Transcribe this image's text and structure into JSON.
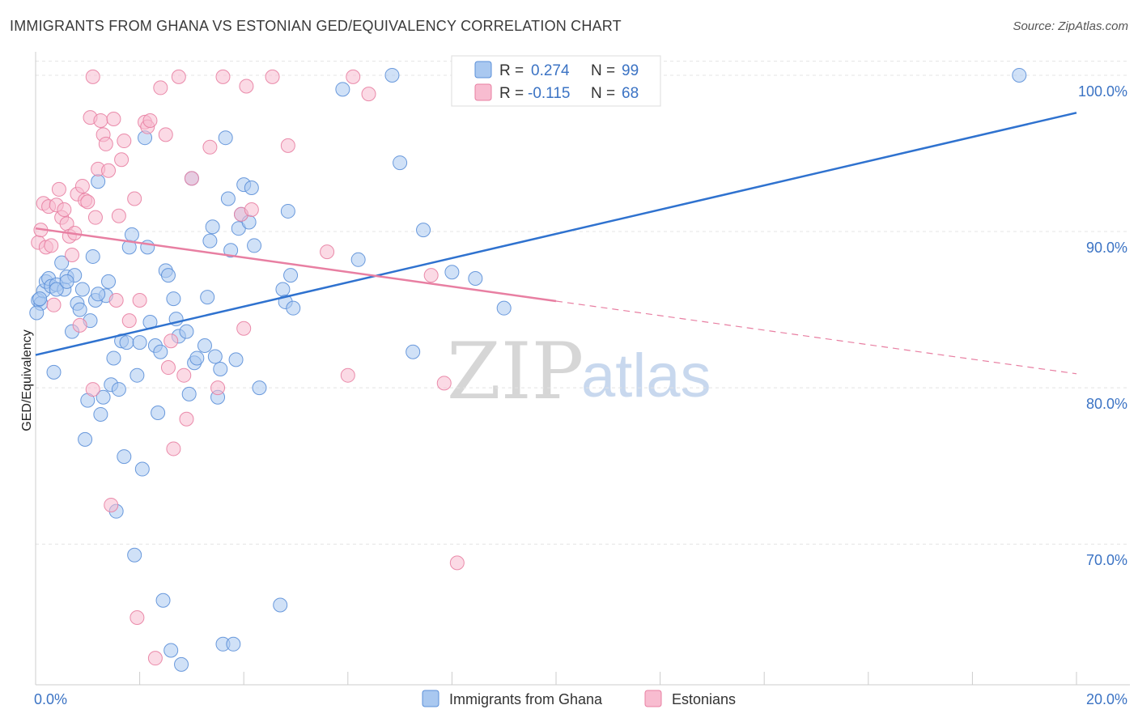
{
  "title": "IMMIGRANTS FROM GHANA VS ESTONIAN GED/EQUIVALENCY CORRELATION CHART",
  "source": "Source: ZipAtlas.com",
  "watermark": {
    "zip": "ZIP",
    "atlas": "atlas"
  },
  "legend_top": {
    "r_label": "R =",
    "n_label": "N =",
    "rows": [
      {
        "r": "0.274",
        "n": "99",
        "color": "#a9c8f0"
      },
      {
        "r": "-0.115",
        "n": "68",
        "color": "#f8bcd0"
      }
    ]
  },
  "chart_data": {
    "type": "scatter",
    "title": "IMMIGRANTS FROM GHANA VS ESTONIAN GED/EQUIVALENCY CORRELATION CHART",
    "xlabel": "",
    "ylabel": "GED/Equivalency",
    "xlim": [
      0,
      20
    ],
    "ylim": [
      61,
      101.5
    ],
    "x_ticks": [
      {
        "v": 0,
        "label": "0.0%"
      },
      {
        "v": 20,
        "label": "20.0%"
      }
    ],
    "y_ticks": [
      {
        "v": 70,
        "label": "70.0%"
      },
      {
        "v": 80,
        "label": "80.0%"
      },
      {
        "v": 90,
        "label": "90.0%"
      },
      {
        "v": 100,
        "label": "100.0%"
      }
    ],
    "grid": true,
    "legend_placement": "top-center",
    "series": [
      {
        "name": "Immigrants from Ghana",
        "color": "#5b8fd8",
        "fill": "#a9c8f0",
        "trend": {
          "x0": 0,
          "y0": 82.1,
          "x1": 20,
          "y1": 97.6,
          "dashed_from": null
        },
        "points": [
          [
            0.05,
            85.6
          ],
          [
            0.1,
            85.4
          ],
          [
            0.15,
            86.2
          ],
          [
            0.2,
            86.8
          ],
          [
            0.25,
            87.0
          ],
          [
            0.3,
            86.5
          ],
          [
            0.35,
            81.0
          ],
          [
            0.4,
            86.6
          ],
          [
            0.5,
            88.0
          ],
          [
            0.55,
            86.3
          ],
          [
            0.6,
            87.1
          ],
          [
            0.7,
            83.6
          ],
          [
            0.75,
            87.2
          ],
          [
            0.8,
            85.4
          ],
          [
            0.85,
            85.0
          ],
          [
            0.9,
            86.3
          ],
          [
            0.95,
            76.7
          ],
          [
            1.0,
            79.2
          ],
          [
            1.05,
            84.3
          ],
          [
            1.1,
            88.4
          ],
          [
            1.15,
            85.6
          ],
          [
            1.2,
            93.2
          ],
          [
            1.25,
            78.3
          ],
          [
            1.3,
            79.4
          ],
          [
            1.35,
            85.9
          ],
          [
            1.4,
            86.8
          ],
          [
            1.45,
            80.2
          ],
          [
            1.5,
            81.9
          ],
          [
            1.55,
            72.1
          ],
          [
            1.6,
            79.9
          ],
          [
            1.65,
            83.0
          ],
          [
            1.7,
            75.6
          ],
          [
            1.75,
            82.9
          ],
          [
            1.8,
            89.0
          ],
          [
            1.85,
            89.8
          ],
          [
            1.9,
            69.3
          ],
          [
            1.95,
            80.8
          ],
          [
            2.0,
            82.9
          ],
          [
            2.05,
            74.8
          ],
          [
            2.1,
            96.0
          ],
          [
            2.15,
            89.0
          ],
          [
            2.2,
            84.2
          ],
          [
            2.3,
            82.7
          ],
          [
            2.35,
            78.4
          ],
          [
            2.4,
            82.3
          ],
          [
            2.45,
            66.4
          ],
          [
            2.5,
            87.5
          ],
          [
            2.55,
            87.2
          ],
          [
            2.6,
            63.2
          ],
          [
            2.65,
            85.7
          ],
          [
            2.7,
            84.4
          ],
          [
            2.75,
            83.3
          ],
          [
            2.8,
            62.3
          ],
          [
            2.9,
            83.6
          ],
          [
            2.95,
            79.6
          ],
          [
            3.0,
            93.4
          ],
          [
            3.05,
            81.6
          ],
          [
            3.1,
            81.9
          ],
          [
            3.25,
            82.7
          ],
          [
            3.3,
            85.8
          ],
          [
            3.35,
            89.4
          ],
          [
            3.4,
            90.3
          ],
          [
            3.45,
            82.0
          ],
          [
            3.5,
            79.4
          ],
          [
            3.55,
            81.2
          ],
          [
            3.6,
            63.6
          ],
          [
            3.65,
            96.0
          ],
          [
            3.7,
            92.1
          ],
          [
            3.75,
            88.8
          ],
          [
            3.8,
            63.6
          ],
          [
            3.85,
            81.8
          ],
          [
            3.9,
            90.2
          ],
          [
            3.95,
            91.1
          ],
          [
            4.0,
            93.0
          ],
          [
            4.1,
            90.6
          ],
          [
            4.15,
            92.8
          ],
          [
            4.2,
            89.1
          ],
          [
            4.3,
            80.0
          ],
          [
            4.7,
            66.1
          ],
          [
            4.75,
            86.3
          ],
          [
            4.8,
            85.5
          ],
          [
            4.85,
            91.3
          ],
          [
            4.9,
            87.2
          ],
          [
            4.95,
            85.1
          ],
          [
            5.9,
            99.1
          ],
          [
            6.2,
            88.2
          ],
          [
            6.85,
            100.0
          ],
          [
            7.0,
            94.4
          ],
          [
            7.25,
            82.3
          ],
          [
            7.45,
            90.1
          ],
          [
            8.0,
            87.4
          ],
          [
            8.45,
            87.0
          ],
          [
            9.0,
            85.1
          ],
          [
            18.9,
            100.0
          ],
          [
            0.02,
            84.8
          ],
          [
            0.08,
            85.7
          ],
          [
            0.4,
            86.3
          ],
          [
            0.6,
            86.8
          ],
          [
            1.2,
            86.0
          ]
        ]
      },
      {
        "name": "Estonians",
        "color": "#e87fa2",
        "fill": "#f8bcd0",
        "trend": {
          "x0": 0,
          "y0": 90.2,
          "x1": 20,
          "y1": 80.9,
          "dashed_from": 10
        },
        "points": [
          [
            0.05,
            89.3
          ],
          [
            0.1,
            90.1
          ],
          [
            0.15,
            91.8
          ],
          [
            0.2,
            89.0
          ],
          [
            0.25,
            91.6
          ],
          [
            0.3,
            89.1
          ],
          [
            0.35,
            85.3
          ],
          [
            0.4,
            91.7
          ],
          [
            0.45,
            92.7
          ],
          [
            0.5,
            90.9
          ],
          [
            0.55,
            91.4
          ],
          [
            0.6,
            90.5
          ],
          [
            0.65,
            89.7
          ],
          [
            0.7,
            88.5
          ],
          [
            0.75,
            89.9
          ],
          [
            0.8,
            92.4
          ],
          [
            0.85,
            84.0
          ],
          [
            0.9,
            92.9
          ],
          [
            0.95,
            92.0
          ],
          [
            1.0,
            91.9
          ],
          [
            1.05,
            97.3
          ],
          [
            1.1,
            79.9
          ],
          [
            1.15,
            90.9
          ],
          [
            1.2,
            94.0
          ],
          [
            1.25,
            97.1
          ],
          [
            1.3,
            96.2
          ],
          [
            1.35,
            95.6
          ],
          [
            1.4,
            93.9
          ],
          [
            1.45,
            72.5
          ],
          [
            1.5,
            97.2
          ],
          [
            1.55,
            85.6
          ],
          [
            1.6,
            91.0
          ],
          [
            1.65,
            94.6
          ],
          [
            1.7,
            95.8
          ],
          [
            1.8,
            84.3
          ],
          [
            1.9,
            92.1
          ],
          [
            1.95,
            65.3
          ],
          [
            2.0,
            85.6
          ],
          [
            2.1,
            97.0
          ],
          [
            2.15,
            96.7
          ],
          [
            2.2,
            97.1
          ],
          [
            2.3,
            62.7
          ],
          [
            2.4,
            99.2
          ],
          [
            2.5,
            96.2
          ],
          [
            2.55,
            81.3
          ],
          [
            2.6,
            83.0
          ],
          [
            2.65,
            76.1
          ],
          [
            2.75,
            99.9
          ],
          [
            2.85,
            80.8
          ],
          [
            2.9,
            78.0
          ],
          [
            3.0,
            93.4
          ],
          [
            3.35,
            95.4
          ],
          [
            3.5,
            80.0
          ],
          [
            3.6,
            99.9
          ],
          [
            3.95,
            91.1
          ],
          [
            4.0,
            83.8
          ],
          [
            4.15,
            91.4
          ],
          [
            4.55,
            99.9
          ],
          [
            4.85,
            95.5
          ],
          [
            5.6,
            88.7
          ],
          [
            6.0,
            80.8
          ],
          [
            6.1,
            99.9
          ],
          [
            6.4,
            98.8
          ],
          [
            7.6,
            87.2
          ],
          [
            7.85,
            80.3
          ],
          [
            8.1,
            68.8
          ],
          [
            1.1,
            99.9
          ],
          [
            4.05,
            99.3
          ]
        ]
      }
    ]
  }
}
